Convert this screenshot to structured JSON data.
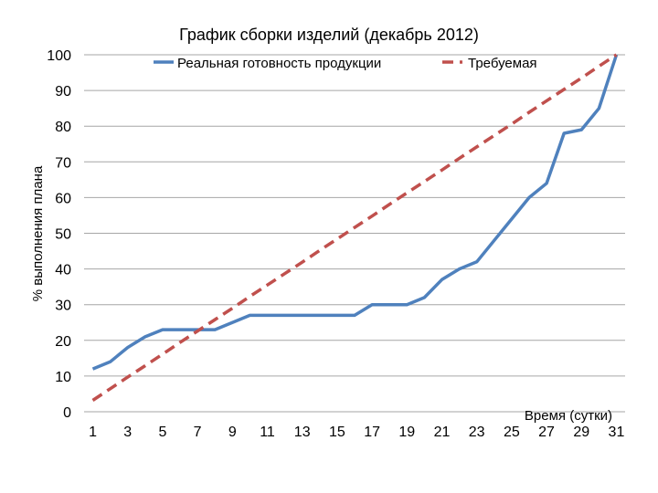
{
  "chart_data": {
    "type": "line",
    "title": "График сборки изделий (декабрь 2012)",
    "xlabel": "Время (сутки)",
    "ylabel": "% выполнения плана",
    "ylim": [
      0,
      100
    ],
    "yticks": [
      "0",
      "10",
      "20",
      "30",
      "40",
      "50",
      "60",
      "70",
      "80",
      "90",
      "100"
    ],
    "x": [
      1,
      2,
      3,
      4,
      5,
      6,
      7,
      8,
      9,
      10,
      11,
      12,
      13,
      14,
      15,
      16,
      17,
      18,
      19,
      20,
      21,
      22,
      23,
      24,
      25,
      26,
      27,
      28,
      29,
      30,
      31
    ],
    "xticks": [
      "1",
      "3",
      "5",
      "7",
      "9",
      "11",
      "13",
      "15",
      "17",
      "19",
      "21",
      "23",
      "25",
      "27",
      "29",
      "31"
    ],
    "grid": true,
    "legend_position": "top",
    "series": [
      {
        "name": "Реальная готовность продукции",
        "color": "#4f81bd",
        "style": "solid",
        "values": [
          12,
          14,
          18,
          21,
          23,
          23,
          23,
          23,
          25,
          27,
          27,
          27,
          27,
          27,
          27,
          27,
          30,
          30,
          30,
          32,
          37,
          40,
          42,
          48,
          54,
          60,
          64,
          78,
          79,
          85,
          100
        ]
      },
      {
        "name": "Требуемая",
        "color": "#c0504d",
        "style": "dashed",
        "values": [
          3.2,
          6.45,
          9.7,
          12.9,
          16.1,
          19.4,
          22.6,
          25.8,
          29.0,
          32.3,
          35.5,
          38.7,
          41.9,
          45.2,
          48.4,
          51.6,
          54.8,
          58.1,
          61.3,
          64.5,
          67.7,
          71.0,
          74.2,
          77.4,
          80.6,
          83.9,
          87.1,
          90.3,
          93.5,
          96.8,
          100
        ]
      }
    ]
  }
}
